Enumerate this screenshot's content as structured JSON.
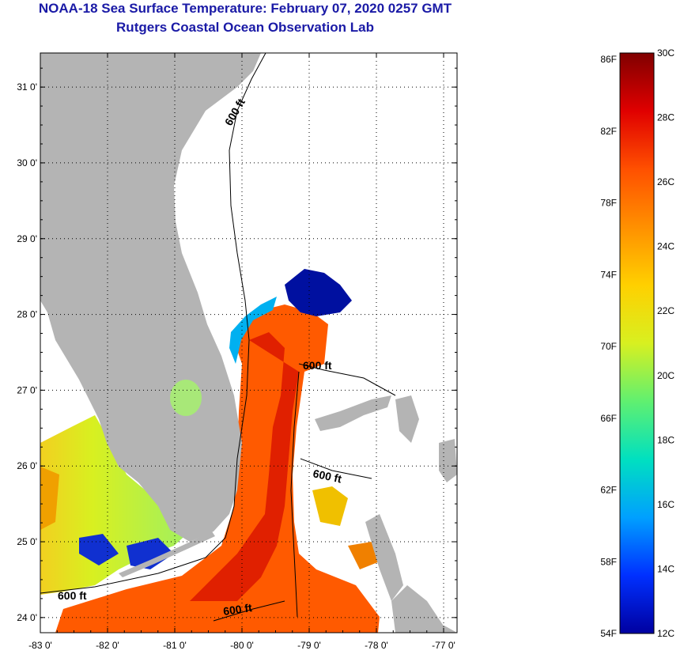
{
  "title": {
    "line1": "NOAA-18 Sea Surface Temperature:  February 07, 2020 0257 GMT",
    "line2": "Rutgers Coastal Ocean Observation Lab"
  },
  "map": {
    "lon_range": [
      -83,
      -76.8
    ],
    "lat_range": [
      23.8,
      31.45
    ],
    "lon_ticks": [
      "-83 0'",
      "-82 0'",
      "-81 0'",
      "-80 0'",
      "-79 0'",
      "-78 0'",
      "-77 0'"
    ],
    "lat_ticks": [
      "24 0'",
      "25 0'",
      "26 0'",
      "27 0'",
      "28 0'",
      "29 0'",
      "30 0'",
      "31 0'"
    ],
    "grid": true,
    "contour_label": "600 ft",
    "colors": {
      "land": "#b4b4b4",
      "cloud": "#ffffff",
      "frame": "#000000"
    }
  },
  "colorbar": {
    "fahrenheit_labels": [
      "86F",
      "82F",
      "78F",
      "74F",
      "70F",
      "66F",
      "62F",
      "58F",
      "54F"
    ],
    "celsius_labels": [
      "30C",
      "28C",
      "26C",
      "24C",
      "22C",
      "20C",
      "18C",
      "16C",
      "14C",
      "12C"
    ],
    "stops": [
      "#0000a0",
      "#0030ff",
      "#00a0ff",
      "#00e0c0",
      "#60f070",
      "#d8f020",
      "#ffd000",
      "#ff9000",
      "#ff5000",
      "#e00000",
      "#800000"
    ]
  }
}
